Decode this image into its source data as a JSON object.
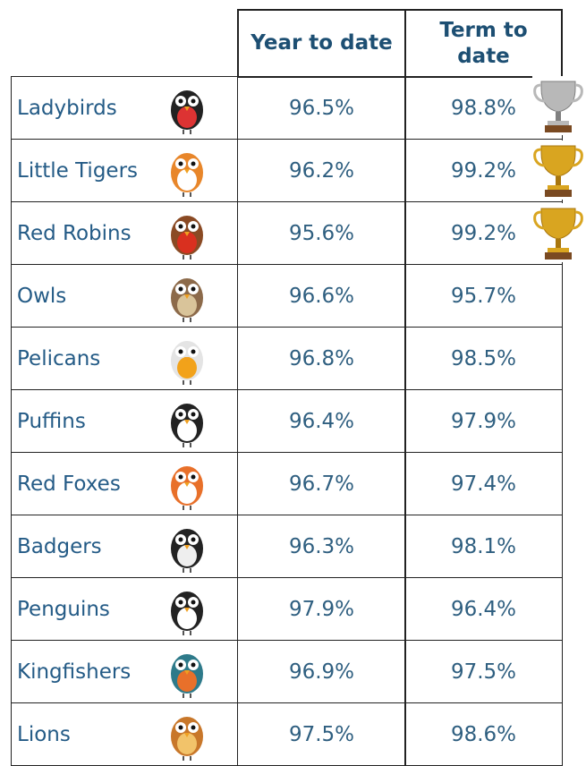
{
  "table": {
    "header": [
      "Year to date",
      "Term to date"
    ],
    "rows": [
      [
        "Ladybirds",
        "96.5%",
        "98.8%"
      ],
      [
        "Little Tigers",
        "96.2%",
        "99.2%"
      ],
      [
        "Red Robins",
        "95.6%",
        "99.2%"
      ],
      [
        "Owls",
        "96.6%",
        "95.7%"
      ],
      [
        "Pelicans",
        "96.8%",
        "98.5%"
      ],
      [
        "Puffins",
        "96.4%",
        "97.9%"
      ],
      [
        "Red Foxes",
        "96.7%",
        "97.4%"
      ],
      [
        "Badgers",
        "96.3%",
        "98.1%"
      ],
      [
        "Penguins",
        "97.9%",
        "96.4%"
      ],
      [
        "Kingfishers",
        "96.9%",
        "97.5%"
      ],
      [
        "Lions",
        "97.5%",
        "98.6%"
      ]
    ]
  }
}
